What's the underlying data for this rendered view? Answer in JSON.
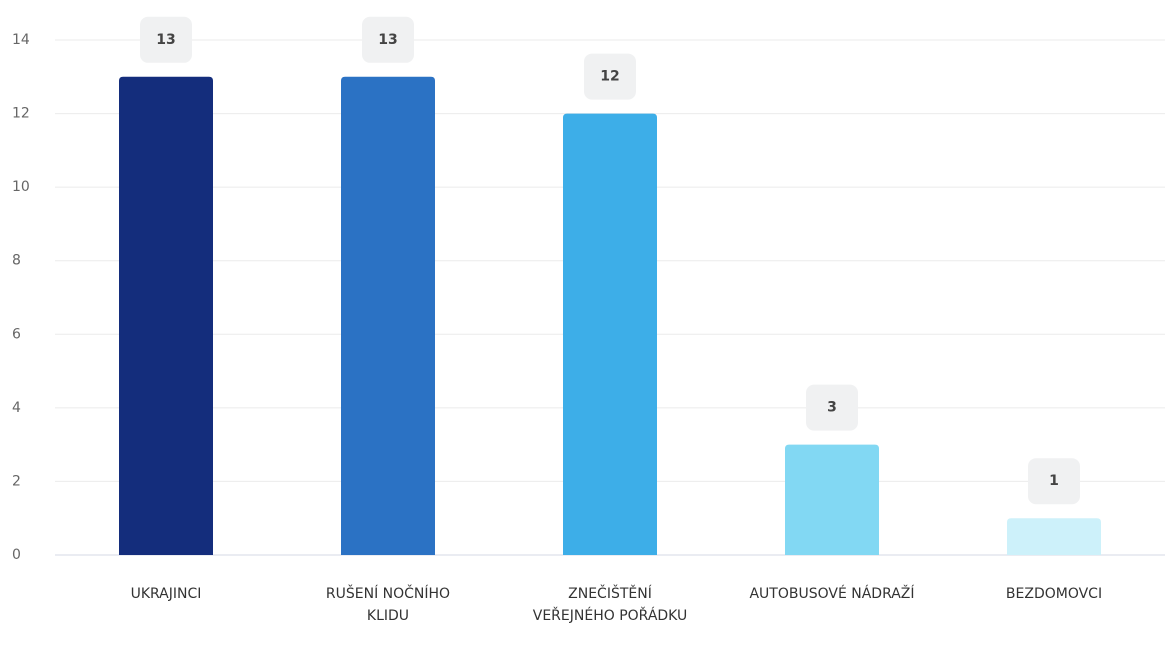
{
  "chart_data": {
    "type": "bar",
    "categories": [
      "UKRAJINCI",
      "RUŠENÍ NOČNÍHO KLIDU",
      "ZNEČIŠTĚNÍ VEŘEJNÉHO POŘÁDKU",
      "AUTOBUSOVÉ NÁDRAŽÍ",
      "BEZDOMOVCI"
    ],
    "values": [
      13,
      13,
      12,
      3,
      1
    ],
    "colors": [
      "#142d7c",
      "#2b72c4",
      "#3daee8",
      "#82d8f3",
      "#cdf1fa"
    ],
    "ylim": [
      0,
      14
    ],
    "yticks": [
      0,
      2,
      4,
      6,
      8,
      10,
      12,
      14
    ],
    "grid": true
  }
}
